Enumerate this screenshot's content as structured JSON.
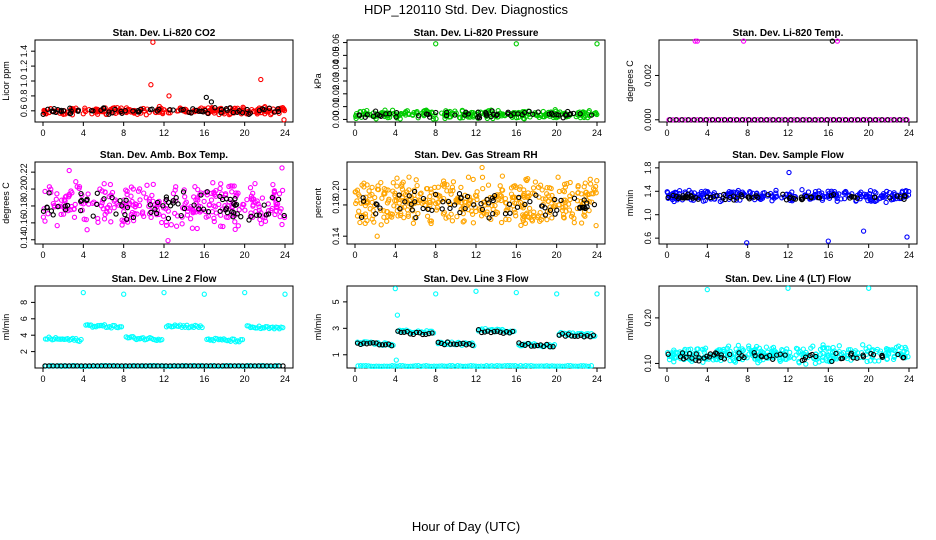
{
  "figure": {
    "title": "HDP_120110  Std. Dev. Diagnostics",
    "xlabel": "Hour of Day (UTC)"
  },
  "chart_data": [
    {
      "type": "scatter",
      "title": "Stan. Dev. Li-820 CO2",
      "ylabel": "Licor ppm",
      "xlim": [
        0,
        24
      ],
      "ylim": [
        0.45,
        1.55
      ],
      "xticks": [
        "0",
        "4",
        "8",
        "12",
        "16",
        "20",
        "24"
      ],
      "yticks": [
        "0.6",
        "0.8",
        "1.0",
        "1.2",
        "1.4"
      ],
      "series": [
        {
          "color": "#ff0000",
          "kind": "band",
          "center": 0.6,
          "spread": 0.06,
          "n": 260,
          "outliers": [
            [
              10.9,
              1.52
            ],
            [
              10.7,
              0.95
            ],
            [
              21.6,
              1.02
            ],
            [
              12.5,
              0.8
            ],
            [
              23.9,
              0.48
            ]
          ]
        },
        {
          "color": "#000000",
          "kind": "band",
          "center": 0.6,
          "spread": 0.05,
          "n": 70,
          "outliers": [
            [
              16.2,
              0.78
            ],
            [
              16.7,
              0.72
            ]
          ]
        }
      ]
    },
    {
      "type": "scatter",
      "title": "Stan. Dev. Li-820 Pressure",
      "ylabel": "kPa",
      "xlim": [
        0,
        24
      ],
      "ylim": [
        -0.002,
        0.062
      ],
      "xticks": [
        "0",
        "4",
        "8",
        "12",
        "16",
        "20",
        "24"
      ],
      "yticks": [
        "0.00",
        "0.01",
        "0.02",
        "0.03",
        "0.04",
        "0.05",
        "0.06"
      ],
      "series": [
        {
          "color": "#00cc00",
          "kind": "band",
          "center": 0.004,
          "spread": 0.004,
          "n": 260,
          "outliers": [
            [
              8.0,
              0.059
            ],
            [
              16.0,
              0.059
            ],
            [
              24.0,
              0.059
            ]
          ]
        },
        {
          "color": "#000000",
          "kind": "band",
          "center": 0.004,
          "spread": 0.003,
          "n": 60,
          "outliers": []
        }
      ]
    },
    {
      "type": "scatter",
      "title": "Stan. Dev. Li-820 Temp.",
      "ylabel": "degrees C",
      "xlim": [
        0,
        24
      ],
      "ylim": [
        -0.0001,
        0.0036
      ],
      "xticks": [
        "0",
        "4",
        "8",
        "12",
        "16",
        "20",
        "24"
      ],
      "yticks": [
        "0.000",
        "0.002"
      ],
      "series": [
        {
          "color": "#ff00ff",
          "kind": "line",
          "center": 0.0,
          "spread": 0.0,
          "n": 60,
          "outliers": [
            [
              2.8,
              0.00355
            ],
            [
              3.0,
              0.00355
            ],
            [
              7.6,
              0.00355
            ],
            [
              16.9,
              0.00355
            ]
          ]
        },
        {
          "color": "#000000",
          "kind": "line",
          "center": 0.0,
          "spread": 0.0,
          "n": 40,
          "outliers": [
            [
              16.4,
              0.00355
            ]
          ]
        }
      ]
    },
    {
      "type": "scatter",
      "title": "Stan. Dev. Amb. Box Temp.",
      "ylabel": "degrees C",
      "xlim": [
        0,
        24
      ],
      "ylim": [
        0.135,
        0.232
      ],
      "xticks": [
        "0",
        "4",
        "8",
        "12",
        "16",
        "20",
        "24"
      ],
      "yticks": [
        "0.14",
        "0.16",
        "0.18",
        "0.20",
        "0.22"
      ],
      "series": [
        {
          "color": "#ff00ff",
          "kind": "band",
          "center": 0.18,
          "spread": 0.03,
          "n": 320,
          "outliers": [
            [
              12.4,
              0.139
            ],
            [
              2.6,
              0.222
            ],
            [
              23.7,
              0.225
            ]
          ]
        },
        {
          "color": "#000000",
          "kind": "band",
          "center": 0.18,
          "spread": 0.02,
          "n": 80,
          "outliers": []
        }
      ]
    },
    {
      "type": "scatter",
      "title": "Stan. Dev. Gas Stream RH",
      "ylabel": "percent",
      "xlim": [
        0,
        24
      ],
      "ylim": [
        0.13,
        0.235
      ],
      "xticks": [
        "0",
        "4",
        "8",
        "12",
        "16",
        "20",
        "24"
      ],
      "yticks": [
        "0.14",
        "0.18",
        "0.20"
      ],
      "series": [
        {
          "color": "#ffa500",
          "kind": "band",
          "center": 0.185,
          "spread": 0.035,
          "n": 420,
          "outliers": [
            [
              2.2,
              0.14
            ],
            [
              12.6,
              0.228
            ]
          ]
        },
        {
          "color": "#000000",
          "kind": "band",
          "center": 0.18,
          "spread": 0.02,
          "n": 70,
          "outliers": []
        }
      ]
    },
    {
      "type": "scatter",
      "title": "Stan. Dev. Sample Flow",
      "ylabel": "ml/min",
      "xlim": [
        0,
        24
      ],
      "ylim": [
        0.5,
        1.9
      ],
      "xticks": [
        "0",
        "4",
        "8",
        "12",
        "16",
        "20",
        "24"
      ],
      "yticks": [
        "0.6",
        "1.0",
        "1.4",
        "1.8"
      ],
      "series": [
        {
          "color": "#0000ff",
          "kind": "band",
          "center": 1.32,
          "spread": 0.12,
          "n": 260,
          "outliers": [
            [
              7.9,
              0.52
            ],
            [
              16.0,
              0.55
            ],
            [
              23.8,
              0.62
            ],
            [
              12.1,
              1.72
            ],
            [
              19.5,
              0.72
            ]
          ]
        },
        {
          "color": "#000000",
          "kind": "band",
          "center": 1.3,
          "spread": 0.06,
          "n": 70,
          "outliers": []
        }
      ]
    },
    {
      "type": "scatter",
      "title": "Stan. Dev. Line 2 Flow",
      "ylabel": "ml/min",
      "xlim": [
        0,
        24
      ],
      "ylim": [
        0,
        10
      ],
      "xticks": [
        "0",
        "4",
        "8",
        "12",
        "16",
        "20",
        "24"
      ],
      "yticks": [
        "2",
        "4",
        "6",
        "8"
      ],
      "series": [
        {
          "color": "#00ffff",
          "kind": "steps",
          "n": 0,
          "steps": [
            [
              0,
              4,
              3.6
            ],
            [
              4,
              8,
              5.2
            ],
            [
              8,
              12,
              3.7
            ],
            [
              12,
              16,
              5.2
            ],
            [
              16,
              20,
              3.5
            ],
            [
              20,
              24,
              5.0
            ]
          ],
          "baseline": 0.25,
          "outliers": [
            [
              4,
              9.2
            ],
            [
              8,
              9.0
            ],
            [
              12,
              9.2
            ],
            [
              16,
              9.0
            ],
            [
              20,
              9.2
            ],
            [
              24,
              9.0
            ]
          ]
        },
        {
          "color": "#000000",
          "kind": "line",
          "center": 0.25,
          "spread": 0.0,
          "n": 60,
          "outliers": []
        }
      ]
    },
    {
      "type": "scatter",
      "title": "Stan. Dev. Line 3 Flow",
      "ylabel": "ml/min",
      "xlim": [
        0,
        24
      ],
      "ylim": [
        0,
        6.2
      ],
      "xticks": [
        "0",
        "4",
        "8",
        "12",
        "16",
        "20",
        "24"
      ],
      "yticks": [
        "1",
        "3",
        "5"
      ],
      "series": [
        {
          "color": "#00ffff",
          "kind": "steps",
          "n": 0,
          "steps": [
            [
              0,
              4,
              1.9
            ],
            [
              4,
              8,
              2.8
            ],
            [
              8,
              12,
              1.9
            ],
            [
              12,
              16,
              2.9
            ],
            [
              16,
              20,
              1.8
            ],
            [
              20,
              24,
              2.6
            ]
          ],
          "baseline": 0.15,
          "outliers": [
            [
              4,
              6.0
            ],
            [
              4.2,
              4.0
            ],
            [
              8,
              5.6
            ],
            [
              12,
              5.8
            ],
            [
              16,
              5.7
            ],
            [
              20,
              5.6
            ],
            [
              24,
              5.6
            ],
            [
              4.1,
              0.6
            ]
          ]
        },
        {
          "color": "#000000",
          "kind": "steps2",
          "n": 0,
          "steps": [
            [
              0,
              4,
              1.9
            ],
            [
              4,
              8,
              2.7
            ],
            [
              8,
              12,
              1.9
            ],
            [
              12,
              16,
              2.8
            ],
            [
              16,
              20,
              1.8
            ],
            [
              20,
              24,
              2.5
            ]
          ],
          "outliers": []
        }
      ]
    },
    {
      "type": "scatter",
      "title": "Stan. Dev. Line 4 (LT) Flow",
      "ylabel": "ml/min",
      "xlim": [
        0,
        24
      ],
      "ylim": [
        0.09,
        0.27
      ],
      "xticks": [
        "0",
        "4",
        "8",
        "12",
        "16",
        "20",
        "24"
      ],
      "yticks": [
        "0.10",
        "0.20"
      ],
      "series": [
        {
          "color": "#00ffff",
          "kind": "band",
          "center": 0.12,
          "spread": 0.022,
          "n": 320,
          "outliers": [
            [
              4,
              0.262
            ],
            [
              12,
              0.265
            ],
            [
              20,
              0.265
            ]
          ]
        },
        {
          "color": "#000000",
          "kind": "band",
          "center": 0.116,
          "spread": 0.012,
          "n": 60,
          "outliers": []
        }
      ]
    }
  ]
}
